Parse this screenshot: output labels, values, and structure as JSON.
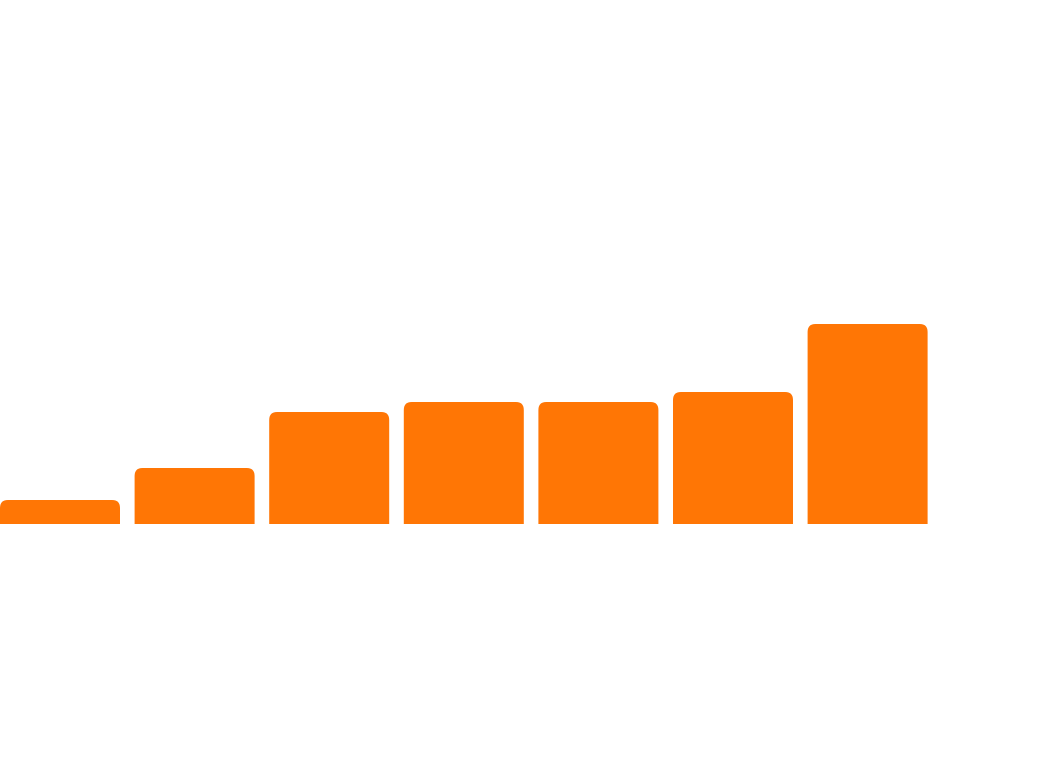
{
  "chart_data": {
    "type": "bar",
    "categories": [
      "",
      "",
      "",
      "",
      "",
      "",
      ""
    ],
    "values": [
      24,
      56,
      112,
      122,
      122,
      132,
      200
    ],
    "title": "",
    "xlabel": "",
    "ylabel": "",
    "ylim": [
      0,
      440
    ],
    "grid": false,
    "legend": "none",
    "bar_color": "#FF7605",
    "background": "#FFFFFF"
  }
}
